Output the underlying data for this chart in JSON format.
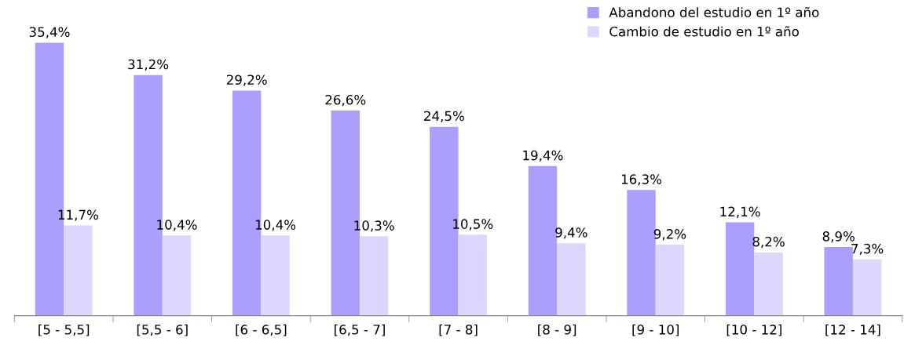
{
  "chart_data": {
    "type": "bar",
    "categories": [
      "[5 - 5,5]",
      "[5,5 - 6]",
      "[6 - 6,5]",
      "[6,5 - 7]",
      "[7 - 8]",
      "[8 - 9]",
      "[9 - 10]",
      "[10 - 12]",
      "[12 - 14]"
    ],
    "series": [
      {
        "name": "Abandono del estudio en 1º año",
        "color": "#aa9ffc",
        "values": [
          35.4,
          31.2,
          29.2,
          26.6,
          24.5,
          19.4,
          16.3,
          12.1,
          8.9
        ],
        "value_labels": [
          "35,4%",
          "31,2%",
          "29,2%",
          "26,6%",
          "24,5%",
          "19,4%",
          "16,3%",
          "12,1%",
          "8,9%"
        ]
      },
      {
        "name": "Cambio de estudio en 1º año",
        "color": "#dcd7fc",
        "values": [
          11.7,
          10.4,
          10.4,
          10.3,
          10.5,
          9.4,
          9.2,
          8.2,
          7.3
        ],
        "value_labels": [
          "11,7%",
          "10,4%",
          "10,4%",
          "10,3%",
          "10,5%",
          "9,4%",
          "9,2%",
          "8,2%",
          "7,3%"
        ]
      }
    ],
    "legend": "top right",
    "grid": false,
    "tick_labels": "x"
  }
}
